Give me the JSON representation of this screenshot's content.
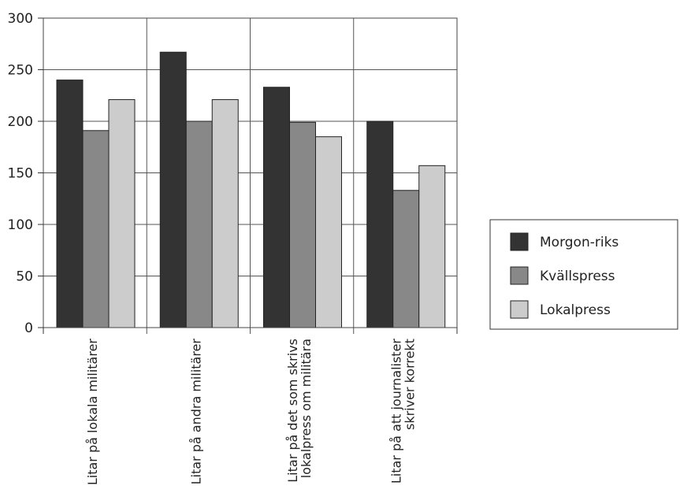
{
  "chart_data": {
    "type": "bar",
    "categories": [
      [
        "Litar på lokala militärer"
      ],
      [
        "Litar på andra militärer"
      ],
      [
        "Litar på det som skrivs",
        "lokalpress om militära"
      ],
      [
        "Litar på att journalister",
        "skriver korrekt"
      ]
    ],
    "series": [
      {
        "name": "Morgon-riks",
        "color": "#333333",
        "values": [
          240,
          267,
          233,
          200
        ]
      },
      {
        "name": "Kvällspress",
        "color": "#888888",
        "values": [
          191,
          200,
          199,
          133
        ]
      },
      {
        "name": "Lokalpress",
        "color": "#cccccc",
        "values": [
          221,
          221,
          185,
          157
        ]
      }
    ],
    "ylim": [
      0,
      300
    ],
    "yticks": [
      0,
      50,
      100,
      150,
      200,
      250,
      300
    ],
    "grid": true,
    "legend_position": "right"
  }
}
